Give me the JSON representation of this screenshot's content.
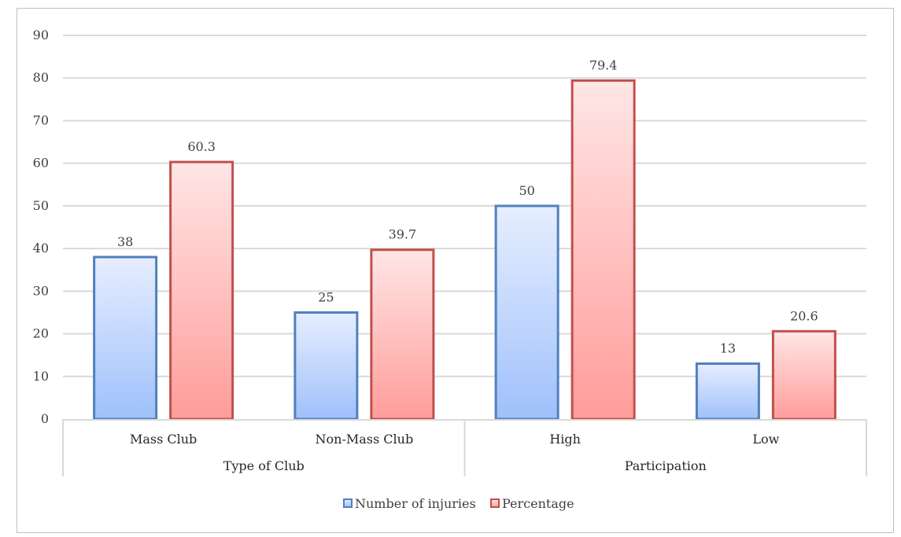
{
  "chart_data": {
    "type": "bar",
    "groups": [
      {
        "label": "Type of Club",
        "categories": [
          "Mass Club",
          "Non-Mass Club"
        ]
      },
      {
        "label": "Participation",
        "categories": [
          "High",
          "Low"
        ]
      }
    ],
    "categories": [
      "Mass Club",
      "Non-Mass Club",
      "High",
      "Low"
    ],
    "series": [
      {
        "name": "Number of injuries",
        "values": [
          38,
          25,
          50,
          13
        ],
        "color": "#4f81bd",
        "fill_top": "#e6eeff",
        "fill_bottom": "#9fc0fb"
      },
      {
        "name": "Percentage",
        "values": [
          60.3,
          39.7,
          79.4,
          20.6
        ],
        "color": "#c0504d",
        "fill_top": "#ffe6e6",
        "fill_bottom": "#ff9d9a"
      }
    ],
    "data_labels": [
      [
        "38",
        "25",
        "50",
        "13"
      ],
      [
        "60.3",
        "39.7",
        "79.4",
        "20.6"
      ]
    ],
    "yticks": [
      "0",
      "10",
      "20",
      "30",
      "40",
      "50",
      "60",
      "70",
      "80",
      "90"
    ],
    "ylim": [
      0,
      90
    ],
    "grid": true,
    "legend_position": "bottom"
  }
}
